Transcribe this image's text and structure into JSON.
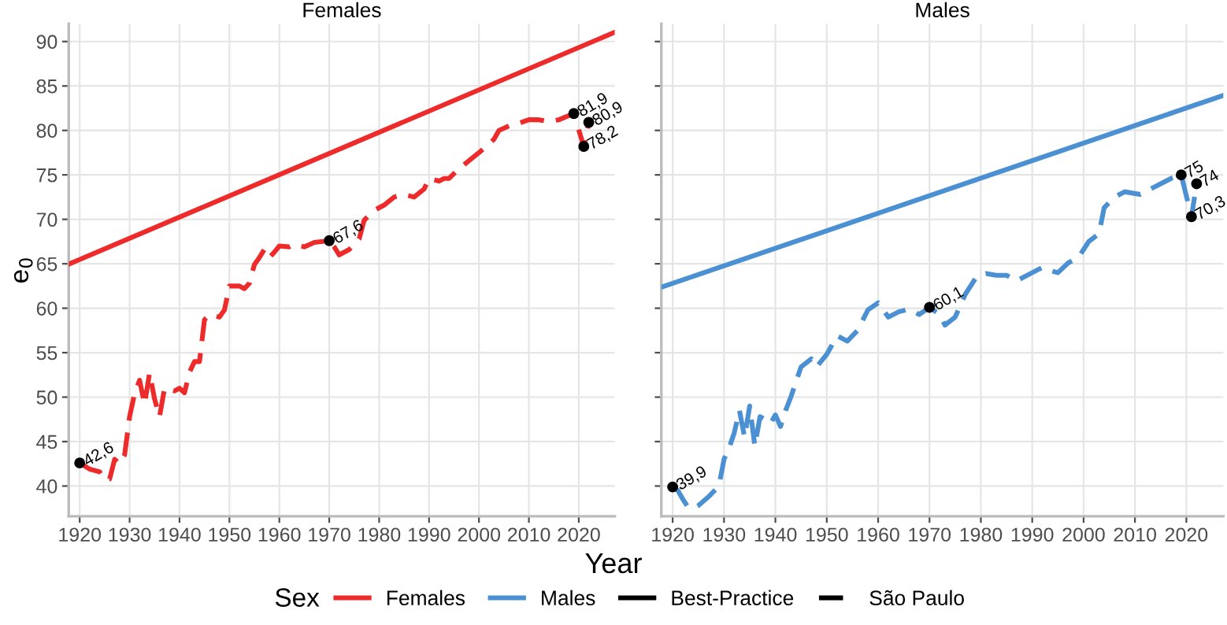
{
  "chart_data": [
    {
      "type": "line",
      "title": "Females",
      "xlabel": "Year",
      "ylabel": "e$_{0}$",
      "legend_title": "Sex",
      "legend": "bottom",
      "grid": true,
      "xlim": [
        1917.8,
        2027.2
      ],
      "ylim": [
        36.6,
        92
      ],
      "xticks": [
        1920,
        1930,
        1940,
        1950,
        1960,
        1970,
        1980,
        1990,
        2000,
        2010,
        2020
      ],
      "yticks": [
        40,
        45,
        50,
        55,
        60,
        65,
        70,
        75,
        80,
        85,
        90
      ],
      "series": [
        {
          "name": "Best-Practice",
          "line_style": "solid",
          "color": "#ee2b2b",
          "x": [
            1918,
            2027
          ],
          "values": [
            65.0,
            91.0
          ]
        },
        {
          "name": "São Paulo",
          "line_style": "dashed",
          "color": "#ee2b2b",
          "x": [
            1920,
            1922,
            1924,
            1925,
            1926,
            1927,
            1928,
            1929,
            1930,
            1931,
            1932,
            1933,
            1934,
            1935,
            1936,
            1937,
            1939,
            1940,
            1941,
            1942,
            1943,
            1944,
            1945,
            1946,
            1948,
            1949,
            1950,
            1952,
            1953,
            1954,
            1955,
            1956,
            1957,
            1958,
            1959,
            1960,
            1962,
            1963,
            1965,
            1967,
            1970,
            1971,
            1972,
            1974,
            1976,
            1977,
            1979,
            1981,
            1983,
            1985,
            1987,
            1989,
            1990,
            1992,
            1993,
            1994,
            1996,
            1998,
            2000,
            2003,
            2004,
            2006,
            2008,
            2010,
            2012,
            2014,
            2016,
            2019,
            2021,
            2022
          ],
          "values": [
            42.6,
            41.9,
            41.6,
            40.7,
            40.8,
            43,
            42.5,
            43.5,
            47.8,
            50.4,
            51.9,
            49.2,
            52.7,
            49.8,
            47.8,
            51,
            50.7,
            51,
            50.5,
            52.8,
            54,
            54,
            58.7,
            59.3,
            59,
            59.8,
            62.5,
            62.5,
            62.2,
            62.8,
            64.9,
            65.7,
            66.6,
            65.7,
            66.3,
            67,
            66.9,
            67.2,
            66.9,
            67.4,
            67.6,
            66.9,
            66,
            66.6,
            67.8,
            69.9,
            71,
            71.6,
            72.5,
            72.8,
            72.5,
            73.4,
            74.6,
            74.3,
            74.6,
            74.6,
            75.7,
            76.6,
            77.5,
            79,
            80,
            80.5,
            80.8,
            81.2,
            81.2,
            81,
            81.2,
            81.9,
            78.2,
            80.9
          ]
        },
        {
          "type": "scatter",
          "marker": "circle",
          "color": "#000000",
          "x": [
            1920,
            1970,
            2019,
            2021,
            2022
          ],
          "values": [
            42.6,
            67.6,
            81.9,
            78.2,
            80.9
          ]
        }
      ],
      "annotations": [
        {
          "text": "42,6",
          "x": 1920,
          "y": 42.6
        },
        {
          "text": "67,6",
          "x": 1970,
          "y": 67.6
        },
        {
          "text": "81,9",
          "x": 2019,
          "y": 81.9
        },
        {
          "text": "78,2",
          "x": 2021,
          "y": 78.2
        },
        {
          "text": "80,9",
          "x": 2022,
          "y": 80.9
        }
      ]
    },
    {
      "type": "line",
      "title": "Males",
      "grid": true,
      "tick_labels": "x",
      "xlim": [
        1917.8,
        2027.2
      ],
      "ylim": [
        36.6,
        92
      ],
      "xticks": [
        1920,
        1930,
        1940,
        1950,
        1960,
        1970,
        1980,
        1990,
        2000,
        2010,
        2020
      ],
      "yticks": [
        40,
        45,
        50,
        55,
        60,
        65,
        70,
        75,
        80,
        85,
        90
      ],
      "series": [
        {
          "line_style": "solid",
          "color": "#4a90d2",
          "x": [
            1918,
            2027
          ],
          "values": [
            62.4,
            83.9
          ]
        },
        {
          "line_style": "dashed",
          "color": "#4a90d2",
          "x": [
            1920,
            1921,
            1922,
            1923,
            1924,
            1925,
            1927,
            1929,
            1930,
            1931,
            1932,
            1933,
            1934,
            1935,
            1936,
            1937,
            1938,
            1939,
            1940,
            1941,
            1942,
            1943,
            1945,
            1947,
            1948,
            1950,
            1952,
            1954,
            1956,
            1958,
            1960,
            1962,
            1964,
            1966,
            1968,
            1970,
            1972,
            1973,
            1975,
            1977,
            1979,
            1981,
            1983,
            1985,
            1987,
            1990,
            1992,
            1993,
            1995,
            1997,
            1999,
            2001,
            2003,
            2004,
            2006,
            2008,
            2011,
            2013,
            2015,
            2017,
            2019,
            2021,
            2022
          ],
          "values": [
            39.9,
            39.5,
            38.5,
            37.6,
            37.5,
            37.8,
            38.8,
            40,
            43,
            44.3,
            46,
            48.5,
            45.5,
            49,
            44.5,
            47.8,
            47.5,
            47,
            48,
            46.7,
            48.5,
            50,
            53.4,
            54.3,
            53.4,
            54.8,
            56.9,
            56.3,
            57.5,
            59.8,
            60.6,
            59,
            59.6,
            59.9,
            59.3,
            60.1,
            59.3,
            58.1,
            59,
            61.6,
            63.4,
            63.9,
            63.7,
            63.7,
            63.1,
            64,
            64.6,
            64.3,
            64,
            65.1,
            65.7,
            67.5,
            68.4,
            71.3,
            72.5,
            73.1,
            72.8,
            73.4,
            74,
            74.6,
            75,
            70.3,
            74
          ]
        },
        {
          "type": "scatter",
          "marker": "circle",
          "color": "#000000",
          "x": [
            1920,
            1970,
            2019,
            2021,
            2022
          ],
          "values": [
            39.9,
            60.1,
            75,
            70.3,
            74
          ]
        }
      ],
      "annotations": [
        {
          "text": "39,9",
          "x": 1920,
          "y": 39.9
        },
        {
          "text": "60,1",
          "x": 1970,
          "y": 60.1
        },
        {
          "text": "75",
          "x": 2019,
          "y": 75
        },
        {
          "text": "70,3",
          "x": 2021,
          "y": 70.3
        },
        {
          "text": "74",
          "x": 2022,
          "y": 74
        }
      ]
    }
  ]
}
